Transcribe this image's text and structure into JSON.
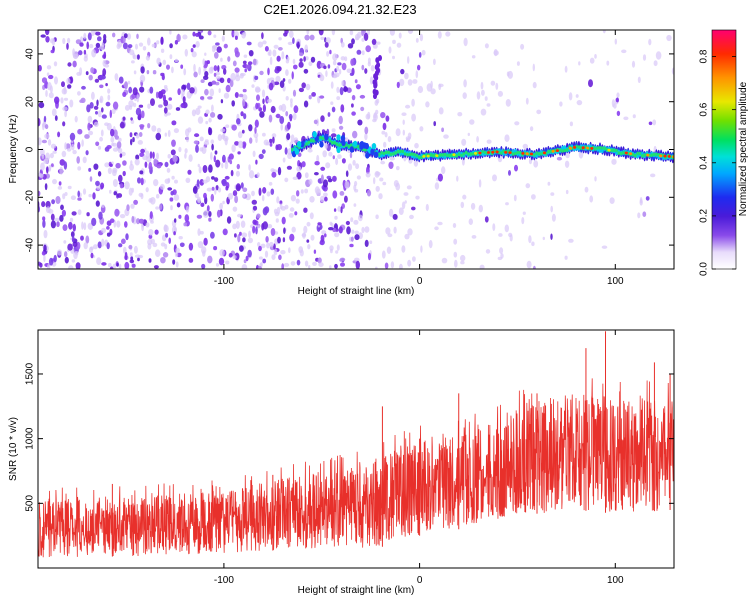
{
  "figure": {
    "title": "C2E1.2026.094.21.32.E23"
  },
  "chart_data": [
    {
      "type": "heatmap",
      "name": "spectrogram",
      "xlabel": "Height of straight line (km)",
      "ylabel": "Frequency (Hz)",
      "xlim": [
        -195,
        130
      ],
      "ylim": [
        -50,
        50
      ],
      "xticks": [
        -100,
        0,
        100
      ],
      "yticks": [
        -40,
        -20,
        0,
        20,
        40
      ],
      "colorbar": {
        "label": "Normalized spectral amplitude",
        "range": [
          0.0,
          0.9
        ],
        "ticks": [
          0.0,
          0.2,
          0.4,
          0.6,
          0.8
        ],
        "tick_labels": [
          "0.0",
          "0.2",
          "0.4",
          "0.6",
          "0.8"
        ]
      },
      "features": {
        "noise_region_x": [
          -195,
          -20
        ],
        "signal_line_x": [
          -65,
          130
        ],
        "signal_line_frequency": [
          {
            "x": -65,
            "f": 0
          },
          {
            "x": -50,
            "f": 5
          },
          {
            "x": -40,
            "f": 2
          },
          {
            "x": -30,
            "f": 1
          },
          {
            "x": -20,
            "f": -2
          },
          {
            "x": -10,
            "f": -1
          },
          {
            "x": 0,
            "f": -3
          },
          {
            "x": 20,
            "f": -2
          },
          {
            "x": 40,
            "f": -1
          },
          {
            "x": 60,
            "f": -2
          },
          {
            "x": 80,
            "f": 1
          },
          {
            "x": 95,
            "f": 0
          },
          {
            "x": 110,
            "f": -2
          },
          {
            "x": 130,
            "f": -3
          }
        ],
        "peak_amplitude_x": [
          30,
          95
        ]
      }
    },
    {
      "type": "line",
      "name": "snr",
      "xlabel": "Height of straight line (km)",
      "ylabel": "SNR (10 * v/v)",
      "xlim": [
        -195,
        130
      ],
      "ylim": [
        0,
        1840
      ],
      "xticks": [
        -100,
        0,
        100
      ],
      "yticks": [
        500,
        1000,
        1500
      ],
      "color": "#e8302b",
      "envelope": [
        {
          "x": -195,
          "low": 80,
          "high": 540
        },
        {
          "x": -150,
          "low": 90,
          "high": 560
        },
        {
          "x": -100,
          "low": 110,
          "high": 600
        },
        {
          "x": -60,
          "low": 150,
          "high": 720
        },
        {
          "x": -40,
          "low": 150,
          "high": 780
        },
        {
          "x": -20,
          "low": 160,
          "high": 880
        },
        {
          "x": 0,
          "low": 250,
          "high": 980
        },
        {
          "x": 20,
          "low": 300,
          "high": 1020
        },
        {
          "x": 40,
          "low": 380,
          "high": 1150
        },
        {
          "x": 60,
          "low": 420,
          "high": 1300
        },
        {
          "x": 80,
          "low": 450,
          "high": 1350
        },
        {
          "x": 100,
          "low": 420,
          "high": 1300
        },
        {
          "x": 130,
          "low": 450,
          "high": 1300
        }
      ],
      "spikes": [
        {
          "x": -157,
          "y": 650
        },
        {
          "x": -75,
          "y": 720
        },
        {
          "x": -19,
          "y": 1250
        },
        {
          "x": 0,
          "y": 1000
        },
        {
          "x": 20,
          "y": 1350
        },
        {
          "x": 60,
          "y": 1350
        },
        {
          "x": 85,
          "y": 1700
        },
        {
          "x": 95,
          "y": 1830
        },
        {
          "x": 120,
          "y": 1590
        },
        {
          "x": 128,
          "y": 1500
        }
      ]
    }
  ]
}
